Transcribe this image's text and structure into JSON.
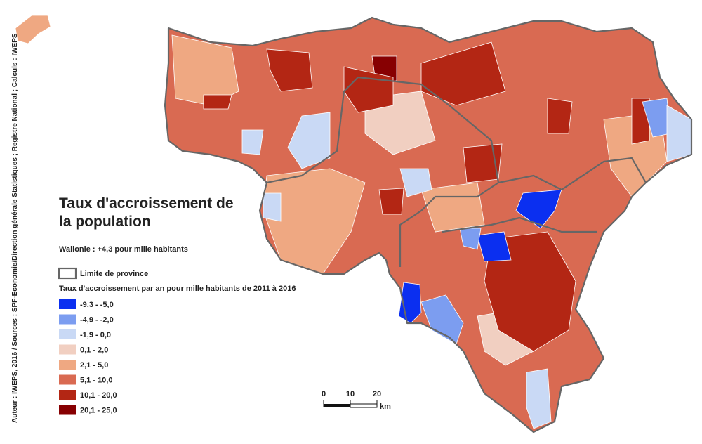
{
  "map": {
    "title_line1": "Taux d'accroissement de",
    "title_line2": "la population",
    "subtitle": "Wallonie : +4,3 pour mille habitants",
    "province_limit_label": "Limite de province",
    "legend_title": "Taux d'accroissement par an pour mille habitants de 2011 à 2016",
    "legend": [
      {
        "label": "-9,3 - -5,0",
        "color": "#0b2ff0"
      },
      {
        "label": "-4,9 - -2,0",
        "color": "#7c9df0"
      },
      {
        "label": "-1,9 - 0,0",
        "color": "#c9d9f5"
      },
      {
        "label": "0,1 - 2,0",
        "color": "#f1cfc1"
      },
      {
        "label": "2,1 - 5,0",
        "color": "#efa882"
      },
      {
        "label": "5,1 - 10,0",
        "color": "#d96a52"
      },
      {
        "label": "10,1 - 20,0",
        "color": "#b32614"
      },
      {
        "label": "20,1 - 25,0",
        "color": "#870002"
      }
    ],
    "scale_bar": {
      "ticks": [
        0,
        10,
        20
      ],
      "unit": "km"
    },
    "credits": "Auteur : IWEPS, 2016 / Sources : SPF-Economie/Direction générale Statistiques ; Registre National ; Calculs : IWEPS"
  }
}
